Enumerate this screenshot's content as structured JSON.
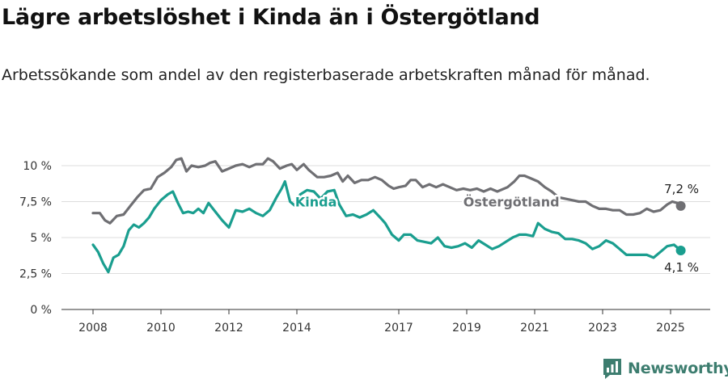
{
  "header": {
    "title": "Lägre arbetslöshet i Kinda än i Östergötland",
    "subtitle": "Arbetssökande som andel av den registerbaserade arbetskraften månad för månad."
  },
  "brand": {
    "name": "Newsworthy",
    "icon": "newsworthy-logo-icon"
  },
  "colors": {
    "kinda": "#1a9e8f",
    "ostergotland": "#6f6f73",
    "grid": "#dddddd",
    "axis": "#333333"
  },
  "chart_data": {
    "type": "line",
    "title": "Lägre arbetslöshet i Kinda än i Östergötland",
    "subtitle": "Arbetssökande som andel av den registerbaserade arbetskraften månad för månad.",
    "x_unit": "year",
    "xlim": [
      2007.1,
      2026.0
    ],
    "ylim": [
      0,
      10
    ],
    "grid": true,
    "y_ticks": [
      {
        "value": 0,
        "label": "0 %"
      },
      {
        "value": 2.5,
        "label": "2,5 %"
      },
      {
        "value": 5,
        "label": "5 %"
      },
      {
        "value": 7.5,
        "label": "7,5 %"
      },
      {
        "value": 10,
        "label": "10 %"
      }
    ],
    "x_ticks": [
      {
        "value": 2008,
        "label": "2008"
      },
      {
        "value": 2010,
        "label": "2010"
      },
      {
        "value": 2012,
        "label": "2012"
      },
      {
        "value": 2014,
        "label": "2014"
      },
      {
        "value": 2017,
        "label": "2017"
      },
      {
        "value": 2019,
        "label": "2019"
      },
      {
        "value": 2021,
        "label": "2021"
      },
      {
        "value": 2023,
        "label": "2023"
      },
      {
        "value": 2025,
        "label": "2025"
      }
    ],
    "series": [
      {
        "name": "Östergötland",
        "color": "#6f6f73",
        "end_label": "7,2 %",
        "points": [
          [
            2008.0,
            6.7
          ],
          [
            2008.2,
            6.7
          ],
          [
            2008.35,
            6.2
          ],
          [
            2008.5,
            6.0
          ],
          [
            2008.7,
            6.5
          ],
          [
            2008.9,
            6.6
          ],
          [
            2009.1,
            7.2
          ],
          [
            2009.3,
            7.8
          ],
          [
            2009.5,
            8.3
          ],
          [
            2009.7,
            8.4
          ],
          [
            2009.9,
            9.2
          ],
          [
            2010.1,
            9.5
          ],
          [
            2010.3,
            9.9
          ],
          [
            2010.45,
            10.4
          ],
          [
            2010.6,
            10.5
          ],
          [
            2010.75,
            9.6
          ],
          [
            2010.9,
            10.0
          ],
          [
            2011.1,
            9.9
          ],
          [
            2011.3,
            10.0
          ],
          [
            2011.45,
            10.2
          ],
          [
            2011.6,
            10.3
          ],
          [
            2011.8,
            9.6
          ],
          [
            2012.0,
            9.8
          ],
          [
            2012.2,
            10.0
          ],
          [
            2012.4,
            10.1
          ],
          [
            2012.6,
            9.9
          ],
          [
            2012.8,
            10.1
          ],
          [
            2013.0,
            10.1
          ],
          [
            2013.15,
            10.5
          ],
          [
            2013.3,
            10.3
          ],
          [
            2013.5,
            9.8
          ],
          [
            2013.7,
            10.0
          ],
          [
            2013.85,
            10.1
          ],
          [
            2014.0,
            9.7
          ],
          [
            2014.2,
            10.1
          ],
          [
            2014.35,
            9.7
          ],
          [
            2014.6,
            9.2
          ],
          [
            2014.8,
            9.2
          ],
          [
            2015.0,
            9.3
          ],
          [
            2015.2,
            9.5
          ],
          [
            2015.35,
            8.9
          ],
          [
            2015.5,
            9.3
          ],
          [
            2015.7,
            8.8
          ],
          [
            2015.9,
            9.0
          ],
          [
            2016.1,
            9.0
          ],
          [
            2016.3,
            9.2
          ],
          [
            2016.5,
            9.0
          ],
          [
            2016.7,
            8.6
          ],
          [
            2016.85,
            8.4
          ],
          [
            2017.0,
            8.5
          ],
          [
            2017.2,
            8.6
          ],
          [
            2017.35,
            9.0
          ],
          [
            2017.5,
            9.0
          ],
          [
            2017.7,
            8.5
          ],
          [
            2017.9,
            8.7
          ],
          [
            2018.1,
            8.5
          ],
          [
            2018.3,
            8.7
          ],
          [
            2018.5,
            8.5
          ],
          [
            2018.7,
            8.3
          ],
          [
            2018.9,
            8.4
          ],
          [
            2019.1,
            8.3
          ],
          [
            2019.3,
            8.4
          ],
          [
            2019.5,
            8.2
          ],
          [
            2019.7,
            8.4
          ],
          [
            2019.9,
            8.2
          ],
          [
            2020.2,
            8.5
          ],
          [
            2020.4,
            8.9
          ],
          [
            2020.55,
            9.3
          ],
          [
            2020.7,
            9.3
          ],
          [
            2020.9,
            9.1
          ],
          [
            2021.1,
            8.9
          ],
          [
            2021.3,
            8.5
          ],
          [
            2021.5,
            8.2
          ],
          [
            2021.7,
            7.8
          ],
          [
            2021.9,
            7.7
          ],
          [
            2022.1,
            7.6
          ],
          [
            2022.3,
            7.5
          ],
          [
            2022.5,
            7.5
          ],
          [
            2022.7,
            7.2
          ],
          [
            2022.9,
            7.0
          ],
          [
            2023.1,
            7.0
          ],
          [
            2023.3,
            6.9
          ],
          [
            2023.5,
            6.9
          ],
          [
            2023.7,
            6.6
          ],
          [
            2023.9,
            6.6
          ],
          [
            2024.1,
            6.7
          ],
          [
            2024.3,
            7.0
          ],
          [
            2024.5,
            6.8
          ],
          [
            2024.7,
            6.9
          ],
          [
            2024.9,
            7.3
          ],
          [
            2025.05,
            7.5
          ],
          [
            2025.2,
            7.4
          ],
          [
            2025.3,
            7.2
          ]
        ]
      },
      {
        "name": "Kinda",
        "color": "#1a9e8f",
        "end_label": "4,1 %",
        "points": [
          [
            2008.0,
            4.5
          ],
          [
            2008.15,
            4.0
          ],
          [
            2008.3,
            3.2
          ],
          [
            2008.45,
            2.6
          ],
          [
            2008.6,
            3.6
          ],
          [
            2008.75,
            3.8
          ],
          [
            2008.9,
            4.4
          ],
          [
            2009.05,
            5.5
          ],
          [
            2009.2,
            5.9
          ],
          [
            2009.35,
            5.7
          ],
          [
            2009.5,
            6.0
          ],
          [
            2009.65,
            6.4
          ],
          [
            2009.8,
            7.0
          ],
          [
            2010.0,
            7.6
          ],
          [
            2010.2,
            8.0
          ],
          [
            2010.35,
            8.2
          ],
          [
            2010.5,
            7.4
          ],
          [
            2010.65,
            6.7
          ],
          [
            2010.8,
            6.8
          ],
          [
            2010.95,
            6.7
          ],
          [
            2011.1,
            7.0
          ],
          [
            2011.25,
            6.7
          ],
          [
            2011.4,
            7.4
          ],
          [
            2011.6,
            6.8
          ],
          [
            2011.8,
            6.2
          ],
          [
            2012.0,
            5.7
          ],
          [
            2012.2,
            6.9
          ],
          [
            2012.4,
            6.8
          ],
          [
            2012.6,
            7.0
          ],
          [
            2012.8,
            6.7
          ],
          [
            2013.0,
            6.5
          ],
          [
            2013.2,
            6.9
          ],
          [
            2013.4,
            7.8
          ],
          [
            2013.55,
            8.4
          ],
          [
            2013.65,
            8.9
          ],
          [
            2013.8,
            7.5
          ],
          [
            2013.95,
            7.2
          ],
          [
            2014.1,
            8.0
          ],
          [
            2014.3,
            8.3
          ],
          [
            2014.5,
            8.2
          ],
          [
            2014.7,
            7.7
          ],
          [
            2014.9,
            8.2
          ],
          [
            2015.1,
            8.3
          ],
          [
            2015.25,
            7.3
          ],
          [
            2015.45,
            6.5
          ],
          [
            2015.65,
            6.6
          ],
          [
            2015.85,
            6.4
          ],
          [
            2016.05,
            6.6
          ],
          [
            2016.25,
            6.9
          ],
          [
            2016.45,
            6.4
          ],
          [
            2016.6,
            6.0
          ],
          [
            2016.8,
            5.2
          ],
          [
            2017.0,
            4.8
          ],
          [
            2017.15,
            5.2
          ],
          [
            2017.35,
            5.2
          ],
          [
            2017.55,
            4.8
          ],
          [
            2017.75,
            4.7
          ],
          [
            2017.95,
            4.6
          ],
          [
            2018.15,
            5.0
          ],
          [
            2018.35,
            4.4
          ],
          [
            2018.55,
            4.3
          ],
          [
            2018.75,
            4.4
          ],
          [
            2018.95,
            4.6
          ],
          [
            2019.15,
            4.3
          ],
          [
            2019.35,
            4.8
          ],
          [
            2019.55,
            4.5
          ],
          [
            2019.75,
            4.2
          ],
          [
            2019.95,
            4.4
          ],
          [
            2020.15,
            4.7
          ],
          [
            2020.35,
            5.0
          ],
          [
            2020.55,
            5.2
          ],
          [
            2020.75,
            5.2
          ],
          [
            2020.95,
            5.1
          ],
          [
            2021.1,
            6.0
          ],
          [
            2021.3,
            5.6
          ],
          [
            2021.5,
            5.4
          ],
          [
            2021.7,
            5.3
          ],
          [
            2021.9,
            4.9
          ],
          [
            2022.1,
            4.9
          ],
          [
            2022.3,
            4.8
          ],
          [
            2022.5,
            4.6
          ],
          [
            2022.7,
            4.2
          ],
          [
            2022.9,
            4.4
          ],
          [
            2023.1,
            4.8
          ],
          [
            2023.3,
            4.6
          ],
          [
            2023.5,
            4.2
          ],
          [
            2023.7,
            3.8
          ],
          [
            2023.9,
            3.8
          ],
          [
            2024.1,
            3.8
          ],
          [
            2024.3,
            3.8
          ],
          [
            2024.5,
            3.6
          ],
          [
            2024.7,
            4.0
          ],
          [
            2024.9,
            4.4
          ],
          [
            2025.1,
            4.5
          ],
          [
            2025.25,
            4.2
          ],
          [
            2025.3,
            4.1
          ]
        ]
      }
    ]
  }
}
